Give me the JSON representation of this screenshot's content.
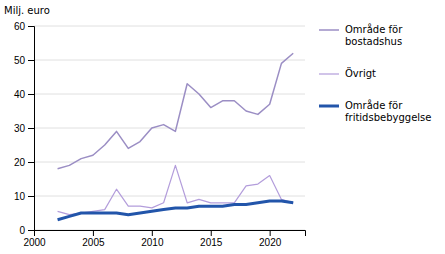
{
  "chart_data": {
    "type": "line",
    "y_label": "Milj. euro",
    "x": [
      2002,
      2003,
      2004,
      2005,
      2006,
      2007,
      2008,
      2009,
      2010,
      2011,
      2012,
      2013,
      2014,
      2015,
      2016,
      2017,
      2018,
      2019,
      2020,
      2021,
      2022
    ],
    "series": [
      {
        "name": "Område för\nbostadshus",
        "color": "#9b8ec4",
        "values": [
          18,
          19,
          21,
          22,
          25,
          29,
          24,
          26,
          30,
          31,
          29,
          43,
          40,
          36,
          38,
          38,
          35,
          34,
          37,
          49,
          52
        ]
      },
      {
        "name": "Övrigt",
        "color": "#b39ddb",
        "values": [
          5.5,
          4.5,
          5,
          5.5,
          6,
          12,
          7,
          7,
          6.5,
          8,
          19,
          8,
          9,
          8,
          8,
          8,
          13,
          13.5,
          16,
          9,
          8
        ]
      },
      {
        "name": "Område för\nfritidsbebyggelse",
        "color": "#2255aa",
        "values": [
          3,
          4,
          5,
          5,
          5,
          5,
          4.5,
          5,
          5.5,
          6,
          6.5,
          6.5,
          7,
          7,
          7,
          7.5,
          7.5,
          8,
          8.5,
          8.5,
          8
        ]
      }
    ],
    "xlim": [
      2000,
      2023
    ],
    "xticks": [
      2000,
      2005,
      2010,
      2015,
      2020
    ],
    "ylim": [
      0,
      60
    ],
    "yticks": [
      0,
      10,
      20,
      30,
      40,
      50,
      60
    ],
    "grid": true,
    "legend": "right"
  }
}
